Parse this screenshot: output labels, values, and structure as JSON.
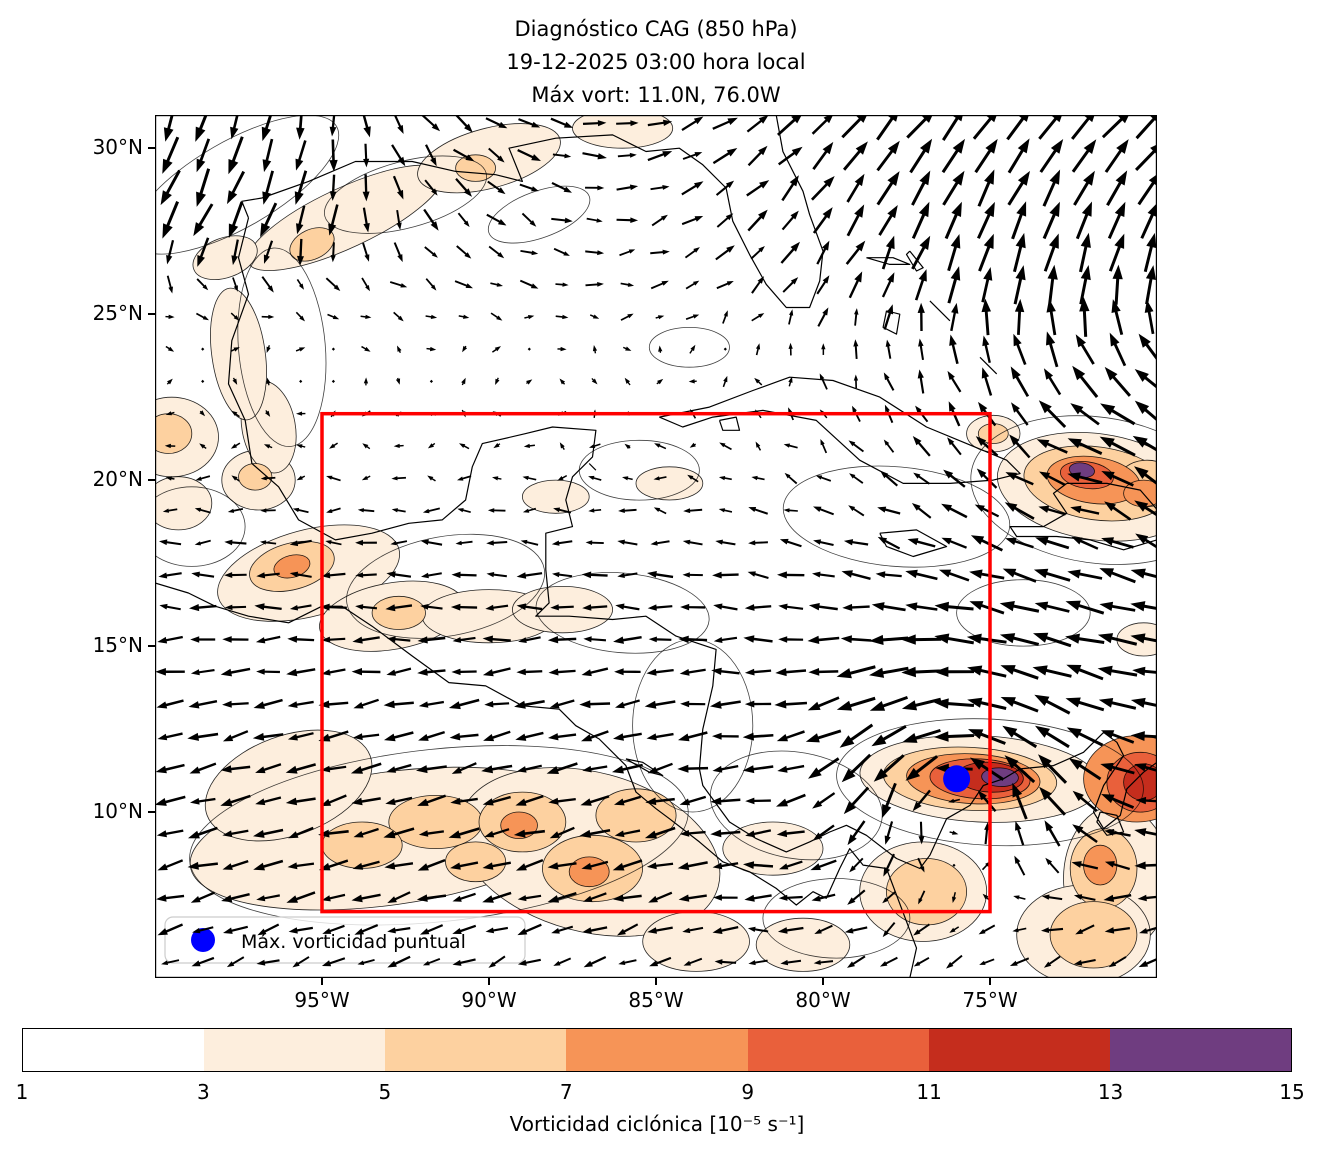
{
  "title_lines": [
    "Diagnóstico CAG (850 hPa)",
    "19-12-2025 03:00 hora local",
    "Máx vort: 11.0N, 76.0W"
  ],
  "chart_data": {
    "type": "map_quiver_contour",
    "title": "Diagnóstico CAG (850 hPa)",
    "subtitle": "19-12-2025 03:00 hora local",
    "annotation": "Máx vort: 11.0N, 76.0W",
    "projection": "lat-lon",
    "lon_range": [
      -100,
      -70
    ],
    "lat_range": [
      5,
      31
    ],
    "x_ticks": [
      {
        "value": -95,
        "label": "95°W"
      },
      {
        "value": -90,
        "label": "90°W"
      },
      {
        "value": -85,
        "label": "85°W"
      },
      {
        "value": -80,
        "label": "80°W"
      },
      {
        "value": -75,
        "label": "75°W"
      }
    ],
    "y_ticks": [
      {
        "value": 30,
        "label": "30°N"
      },
      {
        "value": 25,
        "label": "25°N"
      },
      {
        "value": 20,
        "label": "20°N"
      },
      {
        "value": 15,
        "label": "15°N"
      },
      {
        "value": 10,
        "label": "10°N"
      }
    ],
    "legend": [
      {
        "label": "Máx. vorticidad puntual",
        "marker": "circle",
        "color": "#0000ff"
      }
    ],
    "max_vorticity": {
      "lat": 11.0,
      "lon": -76.0,
      "marker_color": "#0000ff"
    },
    "analysis_box": {
      "lon_west": -95,
      "lon_east": -75,
      "lat_south": 7,
      "lat_north": 22,
      "color": "#ff0000"
    },
    "colorbar": {
      "label": "Vorticidad ciclónica [10⁻⁵ s⁻¹]",
      "min": 1,
      "max": 15,
      "ticks": [
        1,
        3,
        5,
        7,
        9,
        11,
        13,
        15
      ],
      "segments": [
        {
          "from": 1,
          "to": 3,
          "color": "#ffffff"
        },
        {
          "from": 3,
          "to": 5,
          "color": "#fdeedd"
        },
        {
          "from": 5,
          "to": 7,
          "color": "#fdd1a0"
        },
        {
          "from": 7,
          "to": 9,
          "color": "#f69457"
        },
        {
          "from": 9,
          "to": 11,
          "color": "#e9603b"
        },
        {
          "from": 11,
          "to": 13,
          "color": "#c52d1d"
        },
        {
          "from": 13,
          "to": 15,
          "color": "#6f3d80"
        }
      ]
    },
    "vorticity_features": [
      [
        -93.0,
        9.2,
        6.0,
        2.0,
        -8,
        3
      ],
      [
        -87.0,
        8.8,
        4.0,
        2.4,
        15,
        3
      ],
      [
        -96.0,
        10.8,
        2.6,
        1.5,
        -20,
        3
      ],
      [
        -91.6,
        9.7,
        1.4,
        0.8,
        0,
        5
      ],
      [
        -93.8,
        9.0,
        1.2,
        0.7,
        0,
        5
      ],
      [
        -89.0,
        9.7,
        1.3,
        0.9,
        0,
        5
      ],
      [
        -89.1,
        9.6,
        0.55,
        0.4,
        0,
        7
      ],
      [
        -86.9,
        8.3,
        1.5,
        1.0,
        0,
        5
      ],
      [
        -87.0,
        8.2,
        0.6,
        0.45,
        0,
        7
      ],
      [
        -90.4,
        8.5,
        0.9,
        0.6,
        0,
        5
      ],
      [
        -85.6,
        9.9,
        1.2,
        0.8,
        0,
        5
      ],
      [
        -75.3,
        11.0,
        3.6,
        1.3,
        3,
        3
      ],
      [
        -75.6,
        11.0,
        2.6,
        0.95,
        3,
        5
      ],
      [
        -75.5,
        11.0,
        2.0,
        0.75,
        3,
        7
      ],
      [
        -75.3,
        11.0,
        1.5,
        0.6,
        3,
        9
      ],
      [
        -75.0,
        11.05,
        1.0,
        0.45,
        3,
        11
      ],
      [
        -74.7,
        11.05,
        0.55,
        0.28,
        3,
        13
      ],
      [
        -70.6,
        11.0,
        1.6,
        1.3,
        0,
        7
      ],
      [
        -70.5,
        10.9,
        1.0,
        0.9,
        0,
        9
      ],
      [
        -70.4,
        10.9,
        0.6,
        0.55,
        0,
        11
      ],
      [
        -71.2,
        8.0,
        1.6,
        2.2,
        0,
        3
      ],
      [
        -71.6,
        8.3,
        1.0,
        1.2,
        0,
        5
      ],
      [
        -71.7,
        8.4,
        0.5,
        0.6,
        0,
        7
      ],
      [
        -72.2,
        6.3,
        2.0,
        1.5,
        0,
        3
      ],
      [
        -71.9,
        6.3,
        1.3,
        1.0,
        0,
        5
      ],
      [
        -77.0,
        7.6,
        1.9,
        1.5,
        0,
        3
      ],
      [
        -76.9,
        7.6,
        1.2,
        1.0,
        0,
        5
      ],
      [
        -81.5,
        8.9,
        1.5,
        0.8,
        0,
        3
      ],
      [
        -71.8,
        19.8,
        3.0,
        1.6,
        8,
        3
      ],
      [
        -71.8,
        19.9,
        2.2,
        1.1,
        8,
        5
      ],
      [
        -71.9,
        20.0,
        1.4,
        0.7,
        8,
        7
      ],
      [
        -72.1,
        20.15,
        0.8,
        0.4,
        8,
        9
      ],
      [
        -72.25,
        20.3,
        0.38,
        0.22,
        8,
        13
      ],
      [
        -70.3,
        19.9,
        0.9,
        0.7,
        0,
        5
      ],
      [
        -70.4,
        19.6,
        0.6,
        0.4,
        0,
        7
      ],
      [
        -95.4,
        17.2,
        2.8,
        1.3,
        -15,
        3
      ],
      [
        -95.9,
        17.4,
        1.3,
        0.7,
        -15,
        5
      ],
      [
        -95.9,
        17.4,
        0.55,
        0.33,
        -15,
        7
      ],
      [
        -92.9,
        15.9,
        2.2,
        1.0,
        -10,
        3
      ],
      [
        -92.7,
        16.0,
        0.8,
        0.5,
        0,
        5
      ],
      [
        -90.0,
        15.9,
        2.0,
        0.8,
        0,
        3
      ],
      [
        -87.8,
        16.1,
        1.5,
        0.7,
        0,
        3
      ],
      [
        -96.9,
        20.0,
        1.1,
        0.9,
        0,
        3
      ],
      [
        -97.0,
        20.1,
        0.5,
        0.4,
        0,
        5
      ],
      [
        -96.6,
        21.6,
        0.8,
        1.4,
        -10,
        3
      ],
      [
        -97.5,
        23.8,
        0.8,
        2.0,
        -8,
        3
      ],
      [
        -99.5,
        21.3,
        1.4,
        1.2,
        0,
        3
      ],
      [
        -99.6,
        21.4,
        0.7,
        0.6,
        0,
        5
      ],
      [
        -99.3,
        19.3,
        1.0,
        0.8,
        0,
        3
      ],
      [
        -94.3,
        27.9,
        3.2,
        0.9,
        -25,
        3
      ],
      [
        -95.3,
        27.1,
        0.7,
        0.45,
        -25,
        5
      ],
      [
        -90.0,
        29.7,
        2.2,
        0.9,
        -15,
        3
      ],
      [
        -90.4,
        29.4,
        0.6,
        0.4,
        0,
        5
      ],
      [
        -86.0,
        30.6,
        1.5,
        0.6,
        0,
        3
      ],
      [
        -97.9,
        26.7,
        1.0,
        0.6,
        -20,
        3
      ],
      [
        -74.9,
        21.4,
        0.8,
        0.55,
        0,
        3
      ],
      [
        -74.9,
        21.4,
        0.45,
        0.3,
        0,
        5
      ],
      [
        -84.6,
        19.9,
        1.0,
        0.5,
        0,
        3
      ],
      [
        -83.8,
        6.1,
        1.6,
        0.9,
        0,
        3
      ],
      [
        -80.6,
        6.0,
        1.4,
        0.8,
        0,
        3
      ],
      [
        -70.4,
        15.2,
        0.8,
        0.5,
        0,
        3
      ],
      [
        -88.0,
        19.5,
        1.0,
        0.5,
        0,
        3
      ]
    ],
    "contour_rings": [
      [
        -97.6,
        28.9,
        3.5,
        1.3,
        -30
      ],
      [
        -92.5,
        28.6,
        2.5,
        1.0,
        -15
      ],
      [
        -96.2,
        24.0,
        1.3,
        3.0,
        -5
      ],
      [
        -98.9,
        18.6,
        1.6,
        1.2,
        0
      ],
      [
        -91.3,
        16.8,
        3.0,
        1.5,
        -10
      ],
      [
        -86.0,
        16.0,
        2.6,
        1.2,
        5
      ],
      [
        -83.9,
        12.6,
        1.8,
        2.6,
        0
      ],
      [
        -80.8,
        10.2,
        2.6,
        1.6,
        10
      ],
      [
        -77.8,
        18.9,
        3.4,
        1.5,
        5
      ],
      [
        -74.0,
        16.0,
        2.0,
        1.0,
        0
      ],
      [
        -85.5,
        20.3,
        1.8,
        0.9,
        0
      ],
      [
        -79.6,
        6.8,
        2.2,
        1.2,
        0
      ],
      [
        -75.0,
        10.9,
        4.6,
        1.9,
        3
      ],
      [
        -91.5,
        9.3,
        7.5,
        2.6,
        -6
      ],
      [
        -71.8,
        19.7,
        3.8,
        2.2,
        8
      ],
      [
        -88.5,
        28.0,
        1.6,
        0.7,
        -20
      ],
      [
        -84.0,
        24.0,
        1.2,
        0.6,
        0
      ]
    ],
    "wind_field": {
      "lat_profile": [
        [
          5,
          -6
        ],
        [
          8,
          -10
        ],
        [
          13,
          -10
        ],
        [
          17,
          -8
        ],
        [
          20,
          -3
        ],
        [
          22,
          -0.6
        ],
        [
          24,
          0.8
        ],
        [
          26,
          5
        ],
        [
          31,
          8
        ]
      ],
      "vortices": [
        {
          "lon": -76,
          "lat": 11,
          "radius": 3,
          "strength": 11,
          "spin": 1
        },
        {
          "lon": -66,
          "lat": 27,
          "radius": 9,
          "strength": 12,
          "spin": -1
        },
        {
          "lon": -71,
          "lat": 20,
          "radius": 2,
          "strength": 4,
          "spin": 1
        }
      ],
      "grid": {
        "cols": 31,
        "rows": 27
      }
    }
  }
}
